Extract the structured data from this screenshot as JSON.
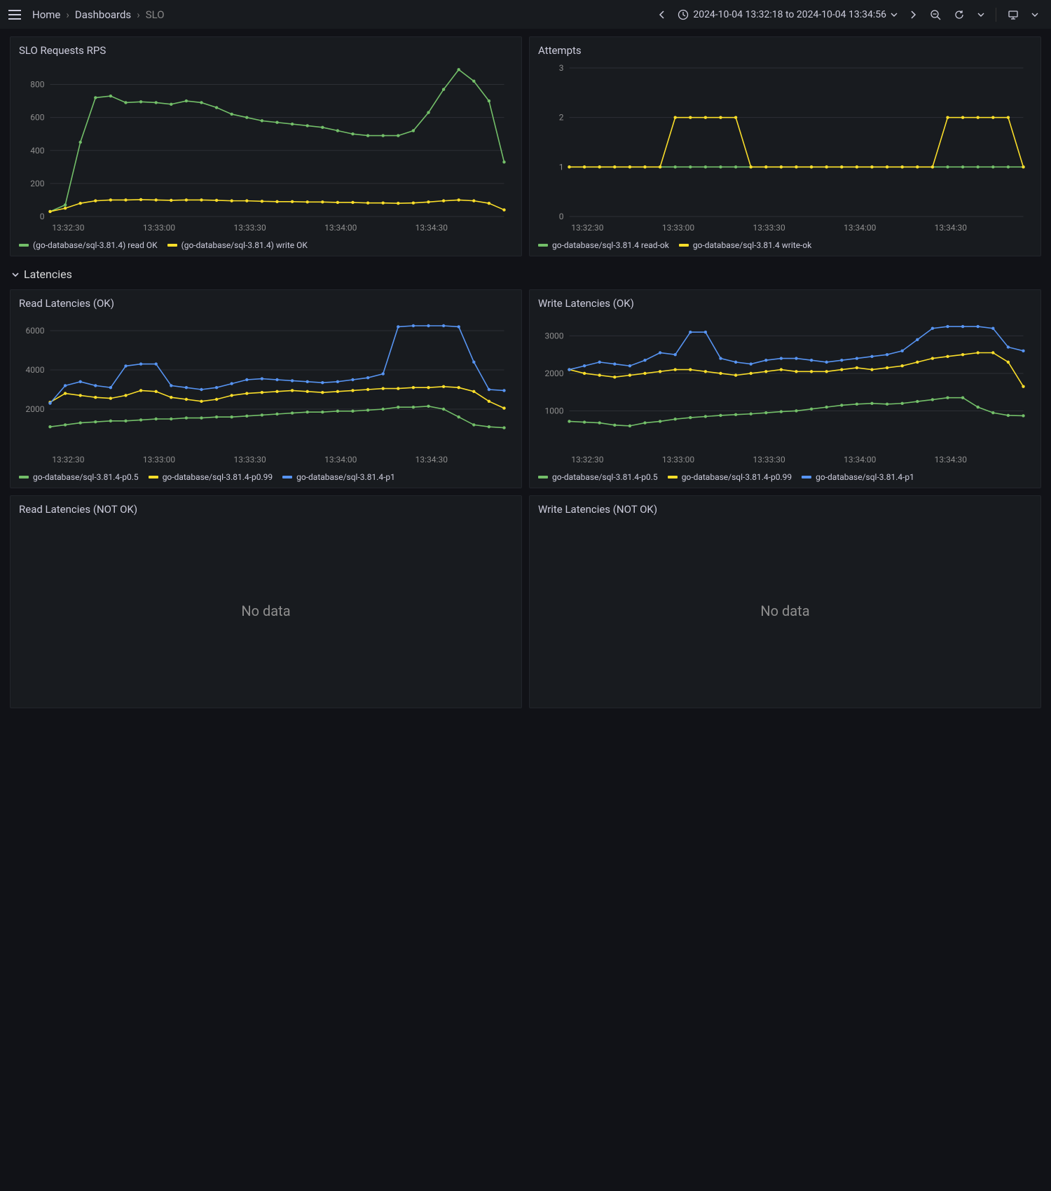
{
  "breadcrumb": {
    "home": "Home",
    "dashboards": "Dashboards",
    "current": "SLO"
  },
  "timerange": "2024-10-04 13:32:18 to 2024-10-04 13:34:56",
  "row": {
    "latencies": "Latencies"
  },
  "nodata": "No data",
  "colors": {
    "green": "#73bf69",
    "yellow": "#fade2a",
    "blue": "#5794f2",
    "grid": "#2c2f35",
    "axis_text": "#8e8e8e",
    "bg": "#181b1f"
  },
  "x_ticks": [
    "13:32:30",
    "13:33:00",
    "13:33:30",
    "13:34:00",
    "13:34:30"
  ],
  "panels": {
    "slo_rps": {
      "title": "SLO Requests RPS",
      "type": "line",
      "ylim": [
        0,
        900
      ],
      "y_ticks": [
        0,
        200,
        400,
        600,
        800
      ],
      "series": [
        {
          "name": "(go-database/sql-3.81.4) read OK",
          "color": "#73bf69",
          "data": [
            30,
            70,
            450,
            720,
            730,
            690,
            695,
            690,
            680,
            700,
            690,
            660,
            620,
            600,
            580,
            570,
            560,
            550,
            540,
            520,
            500,
            490,
            490,
            490,
            520,
            630,
            770,
            890,
            820,
            700,
            330
          ]
        },
        {
          "name": "(go-database/sql-3.81.4) write OK",
          "color": "#fade2a",
          "data": [
            30,
            50,
            80,
            95,
            100,
            100,
            102,
            100,
            98,
            100,
            100,
            98,
            95,
            95,
            92,
            90,
            90,
            88,
            88,
            85,
            85,
            82,
            82,
            80,
            82,
            88,
            95,
            100,
            95,
            80,
            40
          ]
        }
      ]
    },
    "attempts": {
      "title": "Attempts",
      "type": "line",
      "ylim": [
        0,
        3
      ],
      "y_ticks": [
        0,
        1,
        2,
        3
      ],
      "series": [
        {
          "name": "go-database/sql-3.81.4 read-ok",
          "color": "#73bf69",
          "data": [
            1,
            1,
            1,
            1,
            1,
            1,
            1,
            1,
            1,
            1,
            1,
            1,
            1,
            1,
            1,
            1,
            1,
            1,
            1,
            1,
            1,
            1,
            1,
            1,
            1,
            1,
            1,
            1,
            1,
            1,
            1
          ]
        },
        {
          "name": "go-database/sql-3.81.4 write-ok",
          "color": "#fade2a",
          "data": [
            1,
            1,
            1,
            1,
            1,
            1,
            1,
            2,
            2,
            2,
            2,
            2,
            1,
            1,
            1,
            1,
            1,
            1,
            1,
            1,
            1,
            1,
            1,
            1,
            1,
            2,
            2,
            2,
            2,
            2,
            1
          ]
        }
      ]
    },
    "read_lat_ok": {
      "title": "Read Latencies (OK)",
      "type": "line",
      "ylim": [
        0,
        6500
      ],
      "y_ticks": [
        2000,
        4000,
        6000
      ],
      "series": [
        {
          "name": "go-database/sql-3.81.4-p0.5",
          "color": "#73bf69",
          "data": [
            1100,
            1200,
            1300,
            1350,
            1400,
            1400,
            1450,
            1500,
            1500,
            1550,
            1550,
            1600,
            1600,
            1650,
            1700,
            1750,
            1800,
            1850,
            1850,
            1900,
            1900,
            1950,
            2000,
            2100,
            2100,
            2150,
            2000,
            1600,
            1200,
            1100,
            1050
          ]
        },
        {
          "name": "go-database/sql-3.81.4-p0.99",
          "color": "#fade2a",
          "data": [
            2350,
            2800,
            2700,
            2600,
            2550,
            2700,
            2950,
            2900,
            2600,
            2500,
            2400,
            2500,
            2700,
            2800,
            2850,
            2900,
            2950,
            2900,
            2850,
            2900,
            2950,
            3000,
            3050,
            3050,
            3100,
            3100,
            3150,
            3100,
            2900,
            2400,
            2050
          ]
        },
        {
          "name": "go-database/sql-3.81.4-p1",
          "color": "#5794f2",
          "data": [
            2300,
            3200,
            3400,
            3200,
            3100,
            4200,
            4300,
            4300,
            3200,
            3100,
            3000,
            3100,
            3300,
            3500,
            3550,
            3500,
            3450,
            3400,
            3350,
            3400,
            3500,
            3600,
            3800,
            6200,
            6250,
            6250,
            6250,
            6200,
            4400,
            3000,
            2950
          ]
        }
      ]
    },
    "write_lat_ok": {
      "title": "Write Latencies (OK)",
      "type": "line",
      "ylim": [
        0,
        3400
      ],
      "y_ticks": [
        1000,
        2000,
        3000
      ],
      "series": [
        {
          "name": "go-database/sql-3.81.4-p0.5",
          "color": "#73bf69",
          "data": [
            720,
            700,
            680,
            620,
            600,
            680,
            720,
            780,
            820,
            850,
            880,
            900,
            920,
            950,
            980,
            1000,
            1050,
            1100,
            1150,
            1180,
            1200,
            1180,
            1200,
            1250,
            1300,
            1350,
            1350,
            1100,
            950,
            880,
            870
          ]
        },
        {
          "name": "go-database/sql-3.81.4-p0.99",
          "color": "#fade2a",
          "data": [
            2100,
            2000,
            1950,
            1900,
            1950,
            2000,
            2050,
            2100,
            2100,
            2050,
            2000,
            1950,
            2000,
            2050,
            2100,
            2050,
            2050,
            2050,
            2100,
            2150,
            2100,
            2150,
            2200,
            2300,
            2400,
            2450,
            2500,
            2550,
            2550,
            2300,
            1650
          ]
        },
        {
          "name": "go-database/sql-3.81.4-p1",
          "color": "#5794f2",
          "data": [
            2100,
            2200,
            2300,
            2250,
            2200,
            2350,
            2550,
            2500,
            3100,
            3100,
            2400,
            2300,
            2250,
            2350,
            2400,
            2400,
            2350,
            2300,
            2350,
            2400,
            2450,
            2500,
            2600,
            2900,
            3200,
            3250,
            3250,
            3250,
            3200,
            2700,
            2600
          ]
        }
      ]
    },
    "read_lat_notok": {
      "title": "Read Latencies (NOT OK)"
    },
    "write_lat_notok": {
      "title": "Write Latencies (NOT OK)"
    }
  }
}
